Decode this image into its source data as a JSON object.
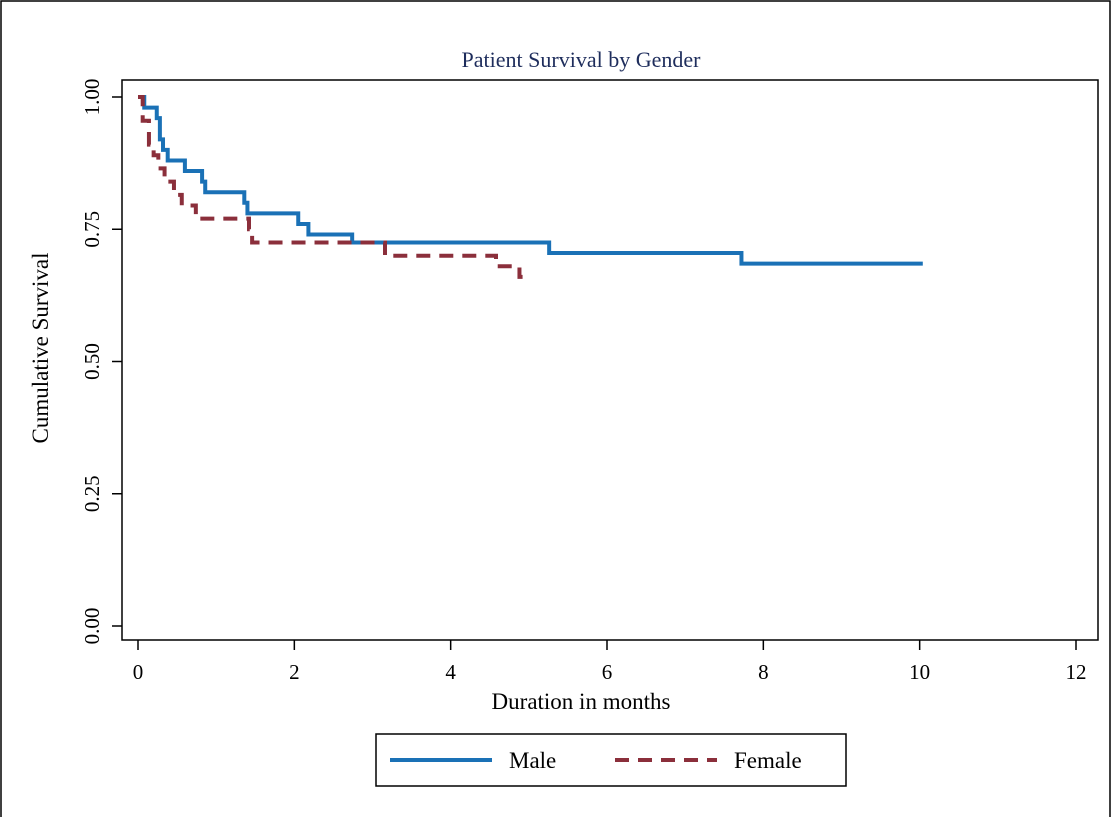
{
  "chart_data": {
    "type": "line",
    "title": "Patient Survival by Gender",
    "xlabel": "Duration in months",
    "ylabel": "Cumulative Survival",
    "xlim": [
      0,
      12
    ],
    "ylim": [
      0,
      1
    ],
    "x_ticks": [
      0,
      2,
      4,
      6,
      8,
      10,
      12
    ],
    "y_ticks": [
      0.0,
      0.25,
      0.5,
      0.75,
      1.0
    ],
    "x_tick_labels": [
      "0",
      "2",
      "4",
      "6",
      "8",
      "10",
      "12"
    ],
    "y_tick_labels": [
      "0.00",
      "0.25",
      "0.50",
      "0.75",
      "1.00"
    ],
    "grid": false,
    "step": true,
    "legend_position": "bottom",
    "series": [
      {
        "name": "Male",
        "style": "solid",
        "color": "#1a71b6",
        "x": [
          0,
          0.08,
          0.24,
          0.28,
          0.32,
          0.38,
          0.6,
          0.82,
          0.86,
          1.36,
          1.4,
          2.05,
          2.18,
          2.74,
          5.26,
          7.72,
          10.04
        ],
        "y": [
          1.0,
          0.98,
          0.96,
          0.92,
          0.9,
          0.88,
          0.86,
          0.84,
          0.82,
          0.8,
          0.78,
          0.76,
          0.74,
          0.725,
          0.705,
          0.685,
          0.685
        ]
      },
      {
        "name": "Female",
        "style": "dashed",
        "color": "#8b2f3b",
        "x": [
          0,
          0.06,
          0.14,
          0.2,
          0.26,
          0.34,
          0.46,
          0.56,
          0.74,
          1.42,
          1.46,
          3.16,
          4.58,
          4.88,
          4.92
        ],
        "y": [
          1.0,
          0.955,
          0.91,
          0.89,
          0.865,
          0.84,
          0.815,
          0.795,
          0.77,
          0.75,
          0.725,
          0.7,
          0.68,
          0.66,
          0.66
        ]
      }
    ]
  }
}
